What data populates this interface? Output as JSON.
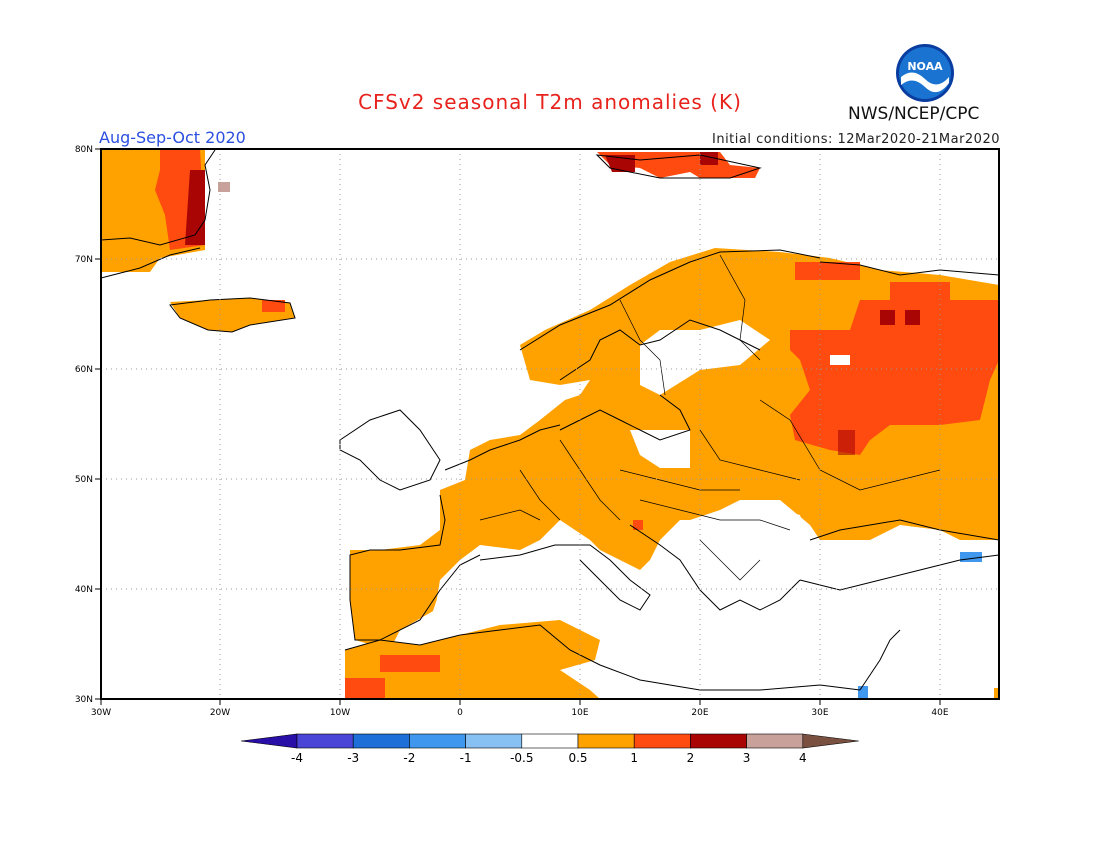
{
  "title": "CFSv2 seasonal T2m anomalies (K)",
  "period": "Aug-Sep-Oct 2020",
  "initial_conditions": "Initial conditions: 12Mar2020-21Mar2020",
  "organization": "NWS/NCEP/CPC",
  "logo_text": "NOAA",
  "map": {
    "lat_labels": [
      "80N",
      "70N",
      "60N",
      "50N",
      "40N",
      "30N"
    ],
    "lon_labels": [
      "30W",
      "20W",
      "10W",
      "0",
      "10E",
      "20E",
      "30E",
      "40E"
    ]
  },
  "colorbar": {
    "labels": [
      "-4",
      "-3",
      "-2",
      "-1",
      "-0.5",
      "0.5",
      "1",
      "2",
      "3",
      "4"
    ],
    "colors": [
      "#2a0ea8",
      "#4a45d6",
      "#1e6fd8",
      "#3f97ee",
      "#87c0f2",
      "#ffffff",
      "#ffa200",
      "#ff4a10",
      "#aa0505",
      "#c8a29a",
      "#7a5040"
    ]
  }
}
